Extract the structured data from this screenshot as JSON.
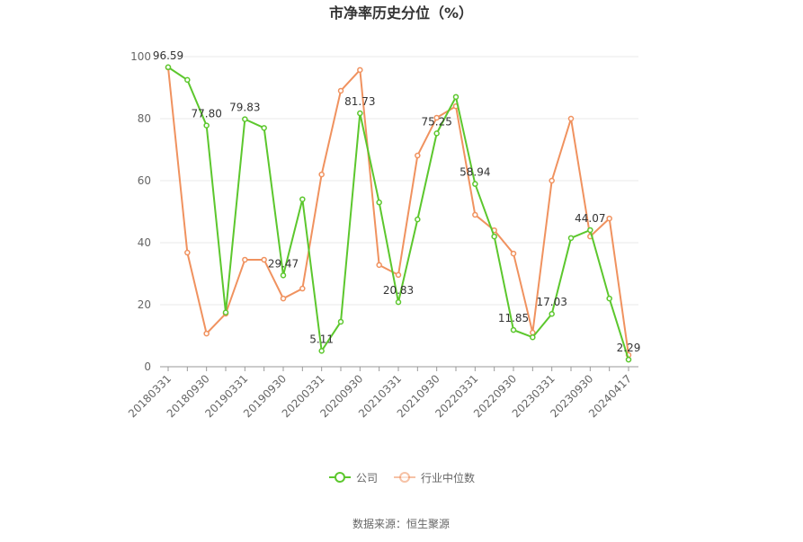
{
  "chart_data": {
    "type": "line",
    "title": "市净率历史分位（%）",
    "source": "数据来源：恒生聚源",
    "categories": [
      "20180331",
      null,
      "20180930",
      null,
      "20190331",
      null,
      "20190930",
      null,
      "20200331",
      null,
      "20200930",
      null,
      "20210331",
      null,
      "20210930",
      null,
      "20220331",
      null,
      "20220930",
      null,
      "20230331",
      null,
      "20230930",
      null,
      "20240417"
    ],
    "series": [
      {
        "name": "公司",
        "color": "#5cc72d",
        "values": [
          96.59,
          92.5,
          77.8,
          17.5,
          79.83,
          77,
          29.47,
          54,
          5.11,
          14.5,
          81.73,
          53,
          20.83,
          47.5,
          75.25,
          87,
          58.94,
          42,
          11.85,
          9.5,
          17.03,
          41.5,
          44.07,
          22,
          2.29
        ],
        "value_labels": [
          "96.59",
          null,
          "77.80",
          null,
          "79.83",
          null,
          "29.47",
          null,
          "5.11",
          null,
          "81.73",
          null,
          "20.83",
          null,
          "75.25",
          null,
          "58.94",
          null,
          "11.85",
          null,
          "17.03",
          null,
          "44.07",
          null,
          "2.29"
        ]
      },
      {
        "name": "行业中位数",
        "color": "#f0925f",
        "values": [
          96.5,
          36.8,
          10.7,
          17.1,
          34.5,
          34.5,
          22,
          25.2,
          62,
          89,
          95.7,
          32.8,
          29.6,
          68.1,
          80.3,
          84,
          49,
          44,
          36.5,
          11,
          60,
          80,
          42,
          47.8,
          3.8
        ]
      }
    ],
    "ylim": [
      0,
      100
    ],
    "yticks": [
      0,
      20,
      40,
      60,
      80,
      100
    ],
    "grid": true
  }
}
